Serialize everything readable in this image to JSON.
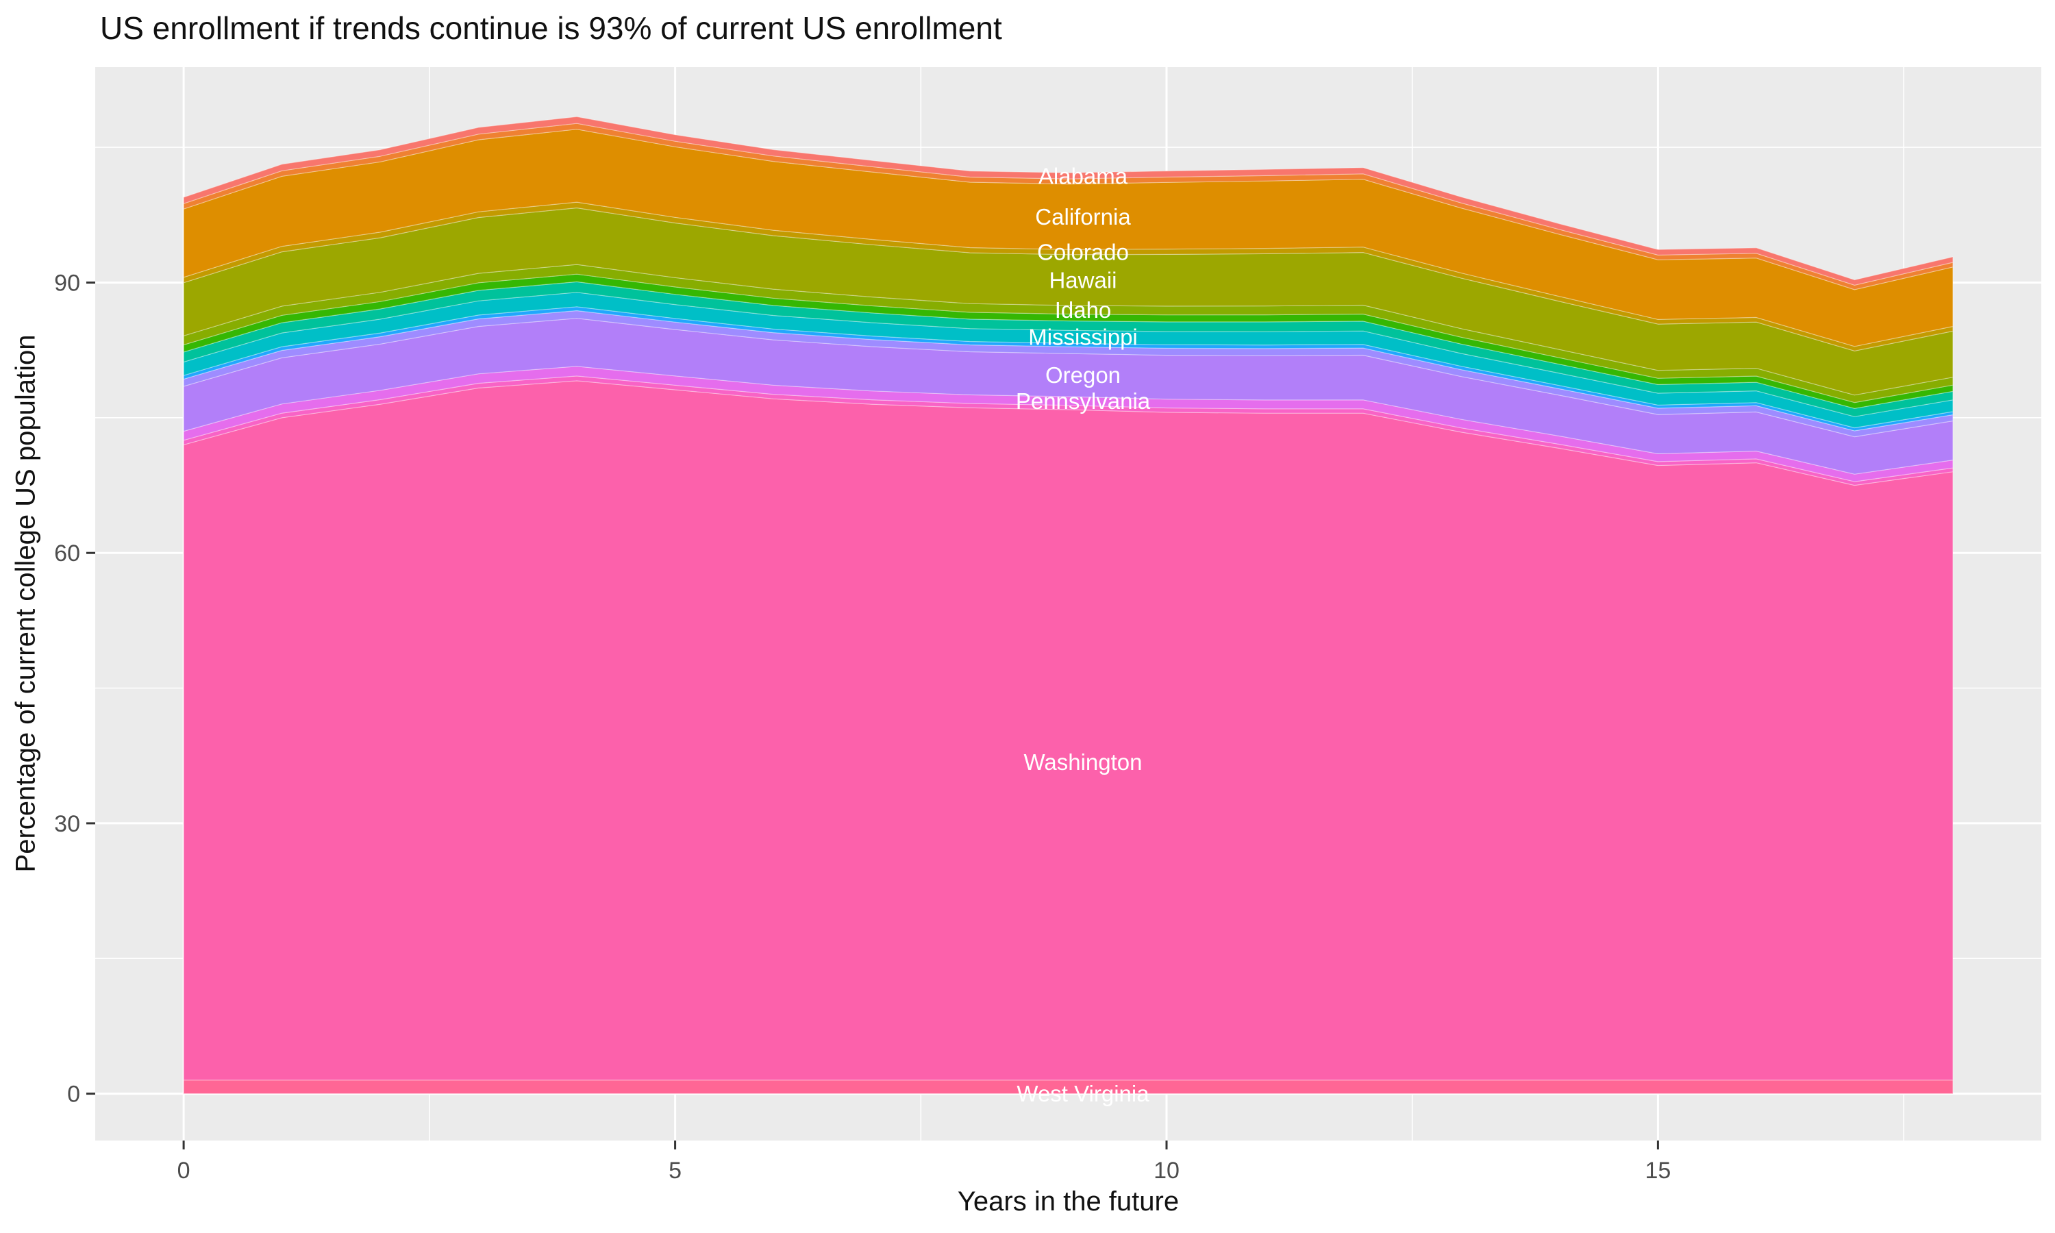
{
  "title": "US enrollment if trends continue is 93% of current US enrollment",
  "axes": {
    "x_label": "Years in the future",
    "y_label": "Percentage of current college US population",
    "x_ticks": [
      0,
      5,
      10,
      15
    ],
    "x_minor": [
      2.5,
      7.5,
      12.5,
      17.5
    ],
    "y_ticks": [
      0,
      30,
      60,
      90
    ],
    "y_minor": [
      15,
      45,
      75,
      105
    ],
    "tick_color": "#333333",
    "tick_label_color": "#4D4D4D",
    "panel_bg": "#EBEBEB",
    "grid_color": "#FFFFFF"
  },
  "chart_data": {
    "type": "area",
    "stacked": true,
    "title": "US enrollment if trends continue is 93% of current US enrollment",
    "xlabel": "Years in the future",
    "ylabel": "Percentage of current college US population",
    "xlim": [
      -0.9,
      18.9
    ],
    "ylim": [
      -5.2,
      113.9
    ],
    "grid": true,
    "legend": false,
    "label_year": 9.15,
    "label_text_color": "#FFFFFF",
    "x": [
      0,
      1,
      2,
      3,
      4,
      5,
      6,
      7,
      8,
      9,
      10,
      11,
      12,
      13,
      14,
      15,
      16,
      17,
      18
    ],
    "series": [
      {
        "name": "west-virginia-group",
        "label": "West Virginia",
        "label_value": 0,
        "color": "#FF6695",
        "values": [
          1.5,
          1.5,
          1.5,
          1.5,
          1.5,
          1.5,
          1.5,
          1.5,
          1.5,
          1.5,
          1.5,
          1.5,
          1.5,
          1.5,
          1.5,
          1.5,
          1.5,
          1.5,
          1.5
        ]
      },
      {
        "name": "washington",
        "label": "Washington",
        "label_value": 36.8,
        "color": "#FC61AB",
        "values": [
          70.5,
          73.5,
          75.0,
          76.8,
          77.6,
          76.6,
          75.6,
          75.0,
          74.6,
          74.4,
          74.1,
          74.0,
          74.0,
          71.9,
          70.1,
          68.2,
          68.5,
          66.0,
          67.5
        ]
      },
      {
        "name": "texas-virginia-slivers",
        "label": null,
        "color": "#F863C6",
        "values": [
          0.5,
          0.51,
          0.51,
          0.52,
          0.53,
          0.51,
          0.5,
          0.49,
          0.48,
          0.48,
          0.49,
          0.49,
          0.49,
          0.47,
          0.45,
          0.43,
          0.43,
          0.41,
          0.43
        ]
      },
      {
        "name": "pennsylvania",
        "label": "Pennsylvania",
        "color": "#E56DED",
        "values": [
          1.0,
          1.02,
          1.03,
          1.05,
          1.07,
          1.03,
          1.01,
          0.98,
          0.96,
          0.96,
          0.97,
          0.98,
          0.99,
          0.95,
          0.91,
          0.87,
          0.87,
          0.83,
          0.87
        ]
      },
      {
        "name": "oregon",
        "label": "Oregon",
        "color": "#B27FF9",
        "values": [
          4.99,
          5.12,
          5.13,
          5.26,
          5.33,
          5.15,
          5.03,
          4.92,
          4.78,
          4.78,
          4.87,
          4.92,
          4.96,
          4.75,
          4.53,
          4.36,
          4.34,
          4.15,
          4.34
        ]
      },
      {
        "name": "ohio-oklahoma-slivers",
        "label": null,
        "color": "#9E8CFF",
        "values": [
          0.8,
          0.82,
          0.82,
          0.84,
          0.85,
          0.82,
          0.8,
          0.79,
          0.76,
          0.76,
          0.78,
          0.79,
          0.79,
          0.76,
          0.72,
          0.7,
          0.69,
          0.66,
          0.69
        ]
      },
      {
        "name": "missouri-ndakota-slivers",
        "label": null,
        "color": "#21A7FD",
        "values": [
          0.4,
          0.41,
          0.41,
          0.42,
          0.43,
          0.41,
          0.4,
          0.39,
          0.38,
          0.38,
          0.39,
          0.39,
          0.4,
          0.38,
          0.36,
          0.35,
          0.35,
          0.33,
          0.35
        ]
      },
      {
        "name": "mississippi",
        "label": "Mississippi",
        "color": "#00BFC7",
        "values": [
          1.5,
          1.53,
          1.54,
          1.58,
          1.6,
          1.54,
          1.51,
          1.48,
          1.43,
          1.43,
          1.46,
          1.48,
          1.49,
          1.42,
          1.36,
          1.31,
          1.3,
          1.24,
          1.3
        ]
      },
      {
        "name": "kansas-minnesota-slivers",
        "label": null,
        "color": "#00C29B",
        "values": [
          1.1,
          1.13,
          1.13,
          1.16,
          1.17,
          1.13,
          1.11,
          1.08,
          1.05,
          1.05,
          1.07,
          1.08,
          1.09,
          1.04,
          1.0,
          0.96,
          0.95,
          0.91,
          0.95
        ]
      },
      {
        "name": "illinois-iowa-slivers",
        "label": null,
        "color": "#35B703",
        "values": [
          0.8,
          0.82,
          0.82,
          0.84,
          0.85,
          0.82,
          0.8,
          0.79,
          0.76,
          0.76,
          0.78,
          0.79,
          0.79,
          0.76,
          0.72,
          0.7,
          0.69,
          0.66,
          0.69
        ]
      },
      {
        "name": "idaho",
        "label": "Idaho",
        "color": "#87AD01",
        "values": [
          1.0,
          1.02,
          1.03,
          1.05,
          1.07,
          1.03,
          1.01,
          0.98,
          0.96,
          0.96,
          0.97,
          0.98,
          0.99,
          0.95,
          0.91,
          0.87,
          0.87,
          0.83,
          0.87
        ]
      },
      {
        "name": "hawaii",
        "label": "Hawaii",
        "color": "#9CA700",
        "values": [
          5.89,
          6.03,
          6.05,
          6.2,
          6.28,
          6.07,
          5.93,
          5.8,
          5.64,
          5.64,
          5.74,
          5.8,
          5.84,
          5.6,
          5.35,
          5.14,
          5.12,
          4.89,
          5.12
        ]
      },
      {
        "name": "colorado-group",
        "label": "Colorado",
        "color": "#C39A00",
        "values": [
          0.6,
          0.61,
          0.62,
          0.63,
          0.64,
          0.62,
          0.6,
          0.59,
          0.57,
          0.57,
          0.59,
          0.59,
          0.6,
          0.57,
          0.54,
          0.52,
          0.52,
          0.5,
          0.52
        ]
      },
      {
        "name": "california",
        "label": "California",
        "color": "#DE8E00",
        "values": [
          7.58,
          7.77,
          7.8,
          7.99,
          8.09,
          7.83,
          7.64,
          7.48,
          7.26,
          7.26,
          7.4,
          7.48,
          7.53,
          7.21,
          6.89,
          6.62,
          6.59,
          6.3,
          6.59
        ]
      },
      {
        "name": "alaska-arkansas-slivers",
        "label": null,
        "color": "#EF8132",
        "values": [
          0.6,
          0.61,
          0.62,
          0.63,
          0.64,
          0.62,
          0.6,
          0.59,
          0.57,
          0.57,
          0.59,
          0.59,
          0.6,
          0.57,
          0.54,
          0.52,
          0.52,
          0.5,
          0.52
        ]
      },
      {
        "name": "alabama",
        "label": "Alabama",
        "color": "#F8766D",
        "values": [
          0.7,
          0.72,
          0.72,
          0.74,
          0.75,
          0.72,
          0.7,
          0.69,
          0.67,
          0.67,
          0.68,
          0.69,
          0.69,
          0.66,
          0.63,
          0.61,
          0.61,
          0.58,
          0.61
        ]
      }
    ]
  }
}
